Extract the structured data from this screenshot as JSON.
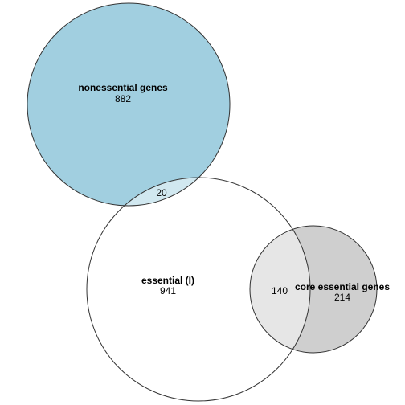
{
  "diagram": {
    "type": "venn",
    "sets": [
      {
        "id": "nonessential",
        "label": "nonessential genes",
        "count_only": "882",
        "fill_color": "#a1cfe0",
        "stroke_color": "#333333"
      },
      {
        "id": "essential",
        "label": "essential (I)",
        "count_only": "941",
        "fill_color": "#ffffff",
        "stroke_color": "#333333"
      },
      {
        "id": "core",
        "label": "core essential genes",
        "count_only": "214",
        "fill_color": "#cfcfcf",
        "stroke_color": "#333333"
      }
    ],
    "overlaps": [
      {
        "id": "nonessential-essential",
        "sets": [
          "nonessential",
          "essential"
        ],
        "count": "20",
        "fill_color": "#d1e8f0"
      },
      {
        "id": "essential-core",
        "sets": [
          "essential",
          "core"
        ],
        "count": "140",
        "fill_color": "#e6e6e6"
      }
    ]
  }
}
